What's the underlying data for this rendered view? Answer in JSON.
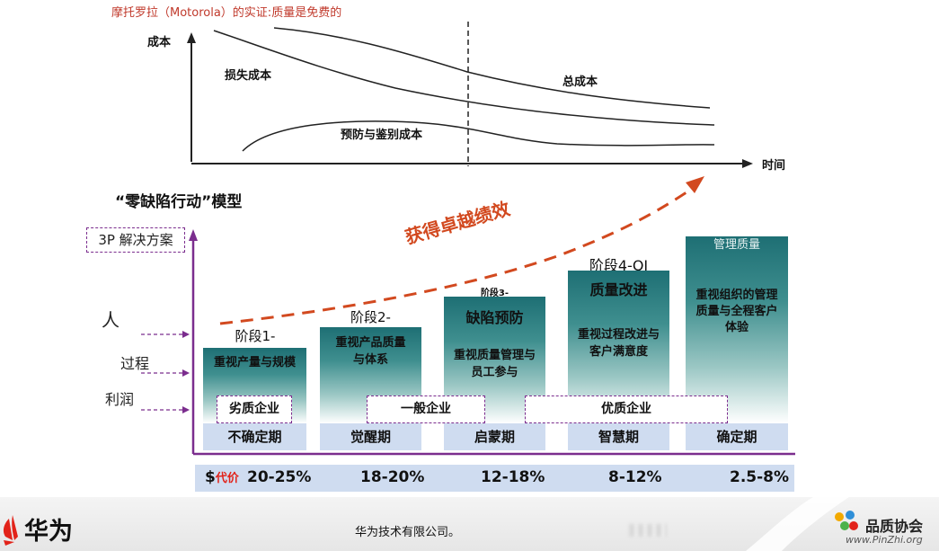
{
  "header": {
    "title": "摩托罗拉（Motorola）的实证:质量是免费的"
  },
  "cost_chart": {
    "y_axis_label": "成本",
    "x_axis_label": "时间",
    "curves": [
      {
        "label": "损失成本"
      },
      {
        "label": "总成本"
      },
      {
        "label": "预防与鉴别成本"
      }
    ]
  },
  "model": {
    "title": "“零缺陷行动”模型",
    "solution_label": "3P 解决方案",
    "factors": {
      "people": "人",
      "process": "过程",
      "profit": "利润"
    },
    "trend_label": "获得卓越绩效",
    "stages": [
      {
        "label": "阶段1-",
        "title": "",
        "desc": "重视产量与规模",
        "period": "不确定期",
        "cost_range": "20-25%"
      },
      {
        "label": "阶段2-",
        "title": "",
        "desc": "重视产品质量与体系",
        "period": "觉醒期",
        "cost_range": "18-20%"
      },
      {
        "label": "阶段3-",
        "title": "缺陷预防",
        "desc": "重视质量管理与员工参与",
        "period": "启蒙期",
        "cost_range": "12-18%"
      },
      {
        "label": "阶段4-QI",
        "title": "质量改进",
        "desc": "重视过程改进与客户满意度",
        "period": "智慧期",
        "cost_range": "8-12%"
      },
      {
        "label": "",
        "title": "管理质量",
        "desc": "重视组织的管理质量与全程客户体验",
        "period": "确定期",
        "cost_range": "2.5-8%"
      }
    ],
    "enterprise_groups": [
      {
        "label": "劣质企业"
      },
      {
        "label": "一般企业"
      },
      {
        "label": "优质企业"
      }
    ],
    "cost_prefix_symbol": "$",
    "cost_prefix_label": "代价"
  },
  "footer": {
    "company_text": "华为技术有限公司。",
    "huawei_name": "华为",
    "pinzhi_name": "品质协会",
    "pinzhi_url": "www.PinZhi.org"
  },
  "colors": {
    "title_red": "#c0392b",
    "stage_teal": "#1e6f74",
    "row_blue": "#cfdcf0",
    "purple": "#7b2d8e",
    "trend_orange": "#d2491f",
    "huawei_red": "#e2231a"
  }
}
